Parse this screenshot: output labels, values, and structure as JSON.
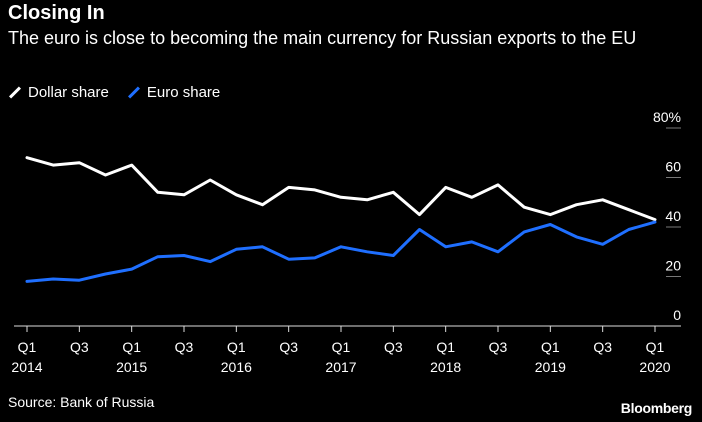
{
  "chart_data": {
    "type": "line",
    "title": "Closing In",
    "subtitle": "The euro is close to becoming the main currency for Russian exports to the EU",
    "x": [
      "2014 Q1",
      "2014 Q2",
      "2014 Q3",
      "2014 Q4",
      "2015 Q1",
      "2015 Q2",
      "2015 Q3",
      "2015 Q4",
      "2016 Q1",
      "2016 Q2",
      "2016 Q3",
      "2016 Q4",
      "2017 Q1",
      "2017 Q2",
      "2017 Q3",
      "2017 Q4",
      "2018 Q1",
      "2018 Q2",
      "2018 Q3",
      "2018 Q4",
      "2019 Q1",
      "2019 Q2",
      "2019 Q3",
      "2019 Q4",
      "2020 Q1"
    ],
    "series": [
      {
        "name": "Dollar share",
        "color": "#ffffff",
        "values": [
          68,
          65,
          66,
          61,
          65,
          54,
          53,
          59,
          53,
          49,
          56,
          55,
          52,
          51,
          54,
          45,
          56,
          52,
          57,
          48,
          45,
          49,
          51,
          47,
          43
        ]
      },
      {
        "name": "Euro share",
        "color": "#1f6fff",
        "values": [
          18,
          19,
          18.5,
          21,
          23,
          28,
          28.5,
          26,
          31,
          32,
          27,
          27.5,
          32,
          30,
          28.5,
          39,
          32,
          34,
          30,
          38,
          41,
          36,
          33,
          39,
          42
        ]
      }
    ],
    "ylim": [
      0,
      80
    ],
    "yticks": [
      "80%",
      "60",
      "40",
      "20",
      "0"
    ],
    "ytick_values": [
      80,
      60,
      40,
      20,
      0
    ],
    "xtick_labels": [
      {
        "q": "Q1",
        "year": "2014",
        "index": 0
      },
      {
        "q": "Q3",
        "year": "",
        "index": 2
      },
      {
        "q": "Q1",
        "year": "2015",
        "index": 4
      },
      {
        "q": "Q3",
        "year": "",
        "index": 6
      },
      {
        "q": "Q1",
        "year": "2016",
        "index": 8
      },
      {
        "q": "Q3",
        "year": "",
        "index": 10
      },
      {
        "q": "Q1",
        "year": "2017",
        "index": 12
      },
      {
        "q": "Q3",
        "year": "",
        "index": 14
      },
      {
        "q": "Q1",
        "year": "2018",
        "index": 16
      },
      {
        "q": "Q3",
        "year": "",
        "index": 18
      },
      {
        "q": "Q1",
        "year": "2019",
        "index": 20
      },
      {
        "q": "Q3",
        "year": "",
        "index": 22
      },
      {
        "q": "Q1",
        "year": "2020",
        "index": 24
      }
    ]
  },
  "source": "Source: Bank of Russia",
  "brand": "Bloomberg"
}
